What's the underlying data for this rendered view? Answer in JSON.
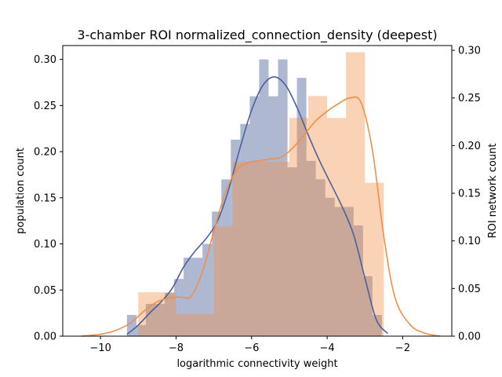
{
  "chart_data": {
    "type": "bar",
    "title": "3-chamber ROI normalized_connection_density (deepest)",
    "xlabel": "logarithmic connectivity weight",
    "ylabel_left": "population count",
    "ylabel_right": "ROI network count",
    "xlim": [
      -11.0,
      -0.7
    ],
    "ylim_left": [
      0,
      0.315
    ],
    "ylim_right": [
      0,
      0.305
    ],
    "x_ticks": [
      -10,
      -8,
      -6,
      -4,
      -2
    ],
    "x_tick_labels": [
      "−10",
      "−8",
      "−6",
      "−4",
      "−2"
    ],
    "y_ticks_left": [
      0.0,
      0.05,
      0.1,
      0.15,
      0.2,
      0.25,
      0.3
    ],
    "y_tick_labels_left": [
      "0.00",
      "0.05",
      "0.10",
      "0.15",
      "0.20",
      "0.25",
      "0.30"
    ],
    "y_ticks_right": [
      0.0,
      0.05,
      0.1,
      0.15,
      0.2,
      0.25,
      0.3
    ],
    "y_tick_labels_right": [
      "0.00",
      "0.05",
      "0.10",
      "0.15",
      "0.20",
      "0.25",
      "0.30"
    ],
    "grid": false,
    "series": [
      {
        "axis": "left",
        "color": "#4c619a",
        "bar_alpha": 0.45,
        "bin_width": 0.25,
        "bins_left_edge": [
          -9.3,
          -9.05,
          -8.8,
          -8.55,
          -8.3,
          -8.05,
          -7.8,
          -7.55,
          -7.3,
          -7.05,
          -6.8,
          -6.55,
          -6.3,
          -6.05,
          -5.8,
          -5.55,
          -5.3,
          -5.05,
          -4.8,
          -4.55,
          -4.3,
          -4.05,
          -3.8,
          -3.55,
          -3.3,
          -3.05,
          -2.8
        ],
        "values": [
          0.023,
          0.012,
          0.035,
          0.035,
          0.047,
          0.062,
          0.085,
          0.085,
          0.1,
          0.135,
          0.17,
          0.213,
          0.23,
          0.26,
          0.3,
          0.26,
          0.3,
          0.183,
          0.28,
          0.19,
          0.17,
          0.15,
          0.14,
          0.14,
          0.12,
          0.065,
          0.023
        ],
        "kde_x": [
          -9.3,
          -9.0,
          -8.7,
          -8.4,
          -8.1,
          -7.8,
          -7.5,
          -7.2,
          -6.9,
          -6.6,
          -6.3,
          -6.0,
          -5.7,
          -5.4,
          -5.1,
          -4.8,
          -4.5,
          -4.2,
          -3.9,
          -3.6,
          -3.3,
          -3.0,
          -2.7,
          -2.4
        ],
        "kde_y": [
          0.002,
          0.012,
          0.025,
          0.037,
          0.052,
          0.075,
          0.092,
          0.106,
          0.125,
          0.16,
          0.205,
          0.245,
          0.272,
          0.281,
          0.272,
          0.248,
          0.218,
          0.19,
          0.165,
          0.14,
          0.11,
          0.063,
          0.018,
          0.003
        ]
      },
      {
        "axis": "right",
        "color": "#f28e45",
        "bar_alpha": 0.4,
        "bin_width": 0.25,
        "bins_left_edge": [
          -9.0,
          -8.75,
          -8.5,
          -8.25,
          -8.0,
          -7.75,
          -7.5,
          -7.25,
          -7.0,
          -6.75,
          -6.5,
          -6.25,
          -6.0,
          -5.75,
          -5.5,
          -5.25,
          -5.0,
          -4.75,
          -4.5,
          -4.25,
          -4.0,
          -3.75,
          -3.5,
          -3.25,
          -3.0,
          -2.75
        ],
        "values": [
          0.046,
          0.046,
          0.046,
          0.046,
          0.023,
          0.023,
          0.023,
          0.023,
          0.115,
          0.115,
          0.183,
          0.183,
          0.183,
          0.183,
          0.183,
          0.183,
          0.229,
          0.229,
          0.252,
          0.252,
          0.229,
          0.229,
          0.298,
          0.298,
          0.161,
          0.161
        ],
        "kde_x": [
          -10.5,
          -10.0,
          -9.6,
          -9.2,
          -8.8,
          -8.5,
          -8.2,
          -7.9,
          -7.6,
          -7.3,
          -7.0,
          -6.7,
          -6.4,
          -6.1,
          -5.8,
          -5.5,
          -5.2,
          -4.9,
          -4.6,
          -4.3,
          -4.0,
          -3.7,
          -3.4,
          -3.1,
          -2.8,
          -2.5,
          -2.2,
          -1.8,
          -1.4,
          -1.0
        ],
        "kde_y": [
          0.0,
          0.002,
          0.006,
          0.014,
          0.028,
          0.036,
          0.04,
          0.041,
          0.042,
          0.068,
          0.11,
          0.15,
          0.174,
          0.182,
          0.184,
          0.186,
          0.188,
          0.198,
          0.212,
          0.226,
          0.236,
          0.244,
          0.25,
          0.245,
          0.195,
          0.105,
          0.04,
          0.012,
          0.003,
          0.0
        ]
      }
    ]
  }
}
